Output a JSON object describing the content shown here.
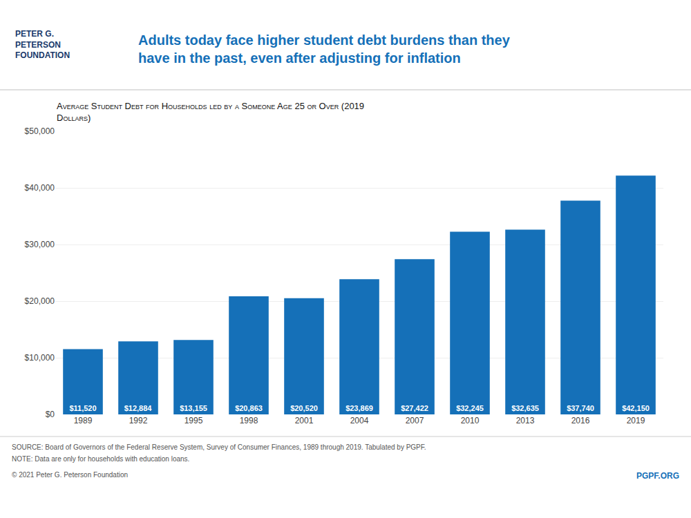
{
  "chart_data": {
    "type": "bar",
    "title": "Adults today face higher student debt burdens than they\nhave in the past, even after adjusting for inflation",
    "subtitle": "Average Student Debt for Households led by a Someone Age 25 or Over (2019\nDollars)",
    "categories": [
      "1989",
      "1992",
      "1995",
      "1998",
      "2001",
      "2004",
      "2007",
      "2010",
      "2013",
      "2016",
      "2019"
    ],
    "values": [
      11520,
      12884,
      13155,
      20863,
      20520,
      23869,
      27422,
      32245,
      32635,
      37740,
      42150
    ],
    "value_labels": [
      "$11,520",
      "$12,884",
      "$13,155",
      "$20,863",
      "$20,520",
      "$23,869",
      "$27,422",
      "$32,245",
      "$32,635",
      "$37,740",
      "$42,150"
    ],
    "data_labels": true,
    "color": "#1570b8",
    "ylim": [
      0,
      50000
    ],
    "yticks": [
      {
        "value": 0,
        "label": "$0"
      },
      {
        "value": 10000,
        "label": "$10,000"
      },
      {
        "value": 20000,
        "label": "$20,000"
      },
      {
        "value": 30000,
        "label": "$30,000"
      },
      {
        "value": 40000,
        "label": "$40,000"
      },
      {
        "value": 50000,
        "label": "$50,000"
      }
    ],
    "grid": true,
    "annotations": [
      "PETER G.\nPETERSON\nFOUNDATION",
      "SOURCE: Board of Governors of the Federal Reserve System, Survey of Consumer Finances, 1989 through 2019. Tabulated by PGPF.",
      "NOTE: Data are only for households with education loans.",
      "© 2021 Peter G. Peterson Foundation",
      "PGPF.ORG"
    ]
  }
}
